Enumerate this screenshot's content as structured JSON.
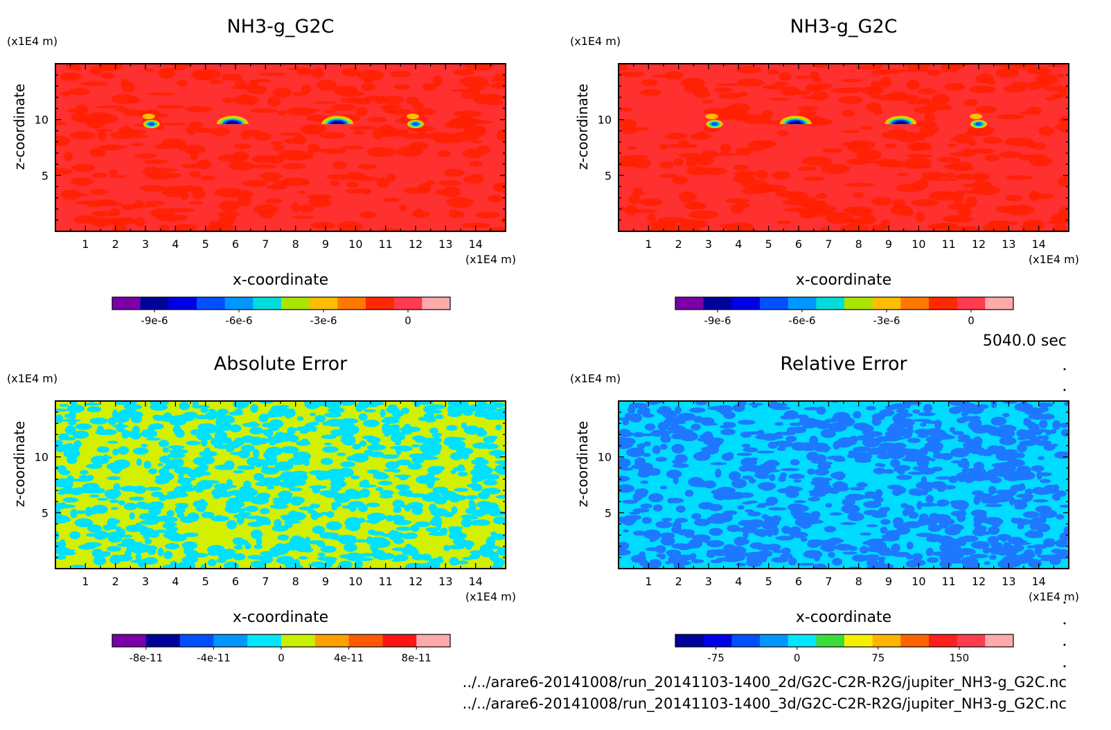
{
  "time_label": "5040.0 sec",
  "files": [
    "../../arare6-20141008/run_20141103-1400_2d/G2C-C2R-R2G/jupiter_NH3-g_G2C.nc",
    "../../arare6-20141008/run_20141103-1400_3d/G2C-C2R-R2G/jupiter_NH3-g_G2C.nc"
  ],
  "chart_data": [
    {
      "type": "heatmap",
      "title": "NH3-g_G2C",
      "xlabel": "x-coordinate",
      "ylabel": "z-coordinate",
      "x_unit": "(x1E4 m)",
      "y_unit": "(x1E4 m)",
      "xlim": [
        0,
        15
      ],
      "ylim": [
        0,
        15
      ],
      "x_ticks": [
        1,
        2,
        3,
        4,
        5,
        6,
        7,
        8,
        9,
        10,
        11,
        12,
        13,
        14
      ],
      "y_ticks": [
        5,
        10
      ],
      "colorbar": {
        "colors": [
          "#7a00a8",
          "#00009b",
          "#0000e6",
          "#0050ff",
          "#0096ff",
          "#00dcdc",
          "#a8e600",
          "#ffbe00",
          "#ff7800",
          "#ff2800",
          "#ff3c50",
          "#ffaaaa"
        ],
        "tick_labels": [
          "-9e-6",
          "-6e-6",
          "-3e-6",
          "0"
        ],
        "tick_values": [
          -9e-06,
          -6e-06,
          -3e-06,
          0
        ],
        "min": -1.05e-05,
        "max": 1.5e-06
      },
      "field": {
        "background": "#ff3030",
        "mottle": "#ff2000",
        "features": [
          {
            "x": 3.2,
            "z": 9.6,
            "shape": "small-blob"
          },
          {
            "x": 5.9,
            "z": 9.6,
            "shape": "dome"
          },
          {
            "x": 9.4,
            "z": 9.6,
            "shape": "dome"
          },
          {
            "x": 12.0,
            "z": 9.6,
            "shape": "small-blob"
          }
        ]
      }
    },
    {
      "type": "heatmap",
      "title": "NH3-g_G2C",
      "xlabel": "x-coordinate",
      "ylabel": "z-coordinate",
      "x_unit": "(x1E4 m)",
      "y_unit": "(x1E4 m)",
      "xlim": [
        0,
        15
      ],
      "ylim": [
        0,
        15
      ],
      "x_ticks": [
        1,
        2,
        3,
        4,
        5,
        6,
        7,
        8,
        9,
        10,
        11,
        12,
        13,
        14
      ],
      "y_ticks": [
        5,
        10
      ],
      "colorbar": {
        "colors": [
          "#7a00a8",
          "#00009b",
          "#0000e6",
          "#0050ff",
          "#0096ff",
          "#00dcdc",
          "#a8e600",
          "#ffbe00",
          "#ff7800",
          "#ff2800",
          "#ff3c50",
          "#ffaaaa"
        ],
        "tick_labels": [
          "-9e-6",
          "-6e-6",
          "-3e-6",
          "0"
        ],
        "tick_values": [
          -9e-06,
          -6e-06,
          -3e-06,
          0
        ],
        "min": -1.05e-05,
        "max": 1.5e-06
      },
      "field": {
        "background": "#ff3030",
        "mottle": "#ff2000",
        "features": [
          {
            "x": 3.2,
            "z": 9.6,
            "shape": "small-blob"
          },
          {
            "x": 5.9,
            "z": 9.6,
            "shape": "dome"
          },
          {
            "x": 9.4,
            "z": 9.6,
            "shape": "dome"
          },
          {
            "x": 12.0,
            "z": 9.6,
            "shape": "small-blob"
          }
        ]
      }
    },
    {
      "type": "heatmap",
      "title": "Absolute Error",
      "xlabel": "x-coordinate",
      "ylabel": "z-coordinate",
      "x_unit": "(x1E4 m)",
      "y_unit": "(x1E4 m)",
      "xlim": [
        0,
        15
      ],
      "ylim": [
        0,
        15
      ],
      "x_ticks": [
        1,
        2,
        3,
        4,
        5,
        6,
        7,
        8,
        9,
        10,
        11,
        12,
        13,
        14
      ],
      "y_ticks": [
        5,
        10
      ],
      "colorbar": {
        "colors": [
          "#7a00a8",
          "#00009b",
          "#0050ff",
          "#0096ff",
          "#00e6ff",
          "#c8f000",
          "#ffa000",
          "#ff5a00",
          "#ff1414",
          "#ffaaaa"
        ],
        "tick_labels": [
          "-8e-11",
          "-4e-11",
          "0",
          "4e-11",
          "8e-11"
        ],
        "tick_values": [
          -8e-11,
          -4e-11,
          0,
          4e-11,
          8e-11
        ],
        "min": -1e-10,
        "max": 1e-10
      },
      "field": {
        "background": "#d2f000",
        "mottle": "#00e0ff",
        "features": []
      }
    },
    {
      "type": "heatmap",
      "title": "Relative Error",
      "xlabel": "x-coordinate",
      "ylabel": "z-coordinate",
      "x_unit": "(x1E4 m)",
      "y_unit": "(x1E4 m)",
      "xlim": [
        0,
        15
      ],
      "ylim": [
        0,
        15
      ],
      "x_ticks": [
        1,
        2,
        3,
        4,
        5,
        6,
        7,
        8,
        9,
        10,
        11,
        12,
        13,
        14
      ],
      "y_ticks": [
        5,
        10
      ],
      "colorbar": {
        "colors": [
          "#00009b",
          "#0000e6",
          "#0050ff",
          "#0096ff",
          "#00e6ff",
          "#3cdc3c",
          "#f5f000",
          "#ffb400",
          "#ff6400",
          "#ff1e1e",
          "#ff3c50",
          "#ffaaaa"
        ],
        "tick_labels": [
          "-75",
          "0",
          "75",
          "150"
        ],
        "tick_values": [
          -75,
          0,
          75,
          150
        ],
        "min": -112.5,
        "max": 200
      },
      "field": {
        "background": "#00dcff",
        "mottle": "#1e78ff",
        "features": []
      }
    }
  ]
}
